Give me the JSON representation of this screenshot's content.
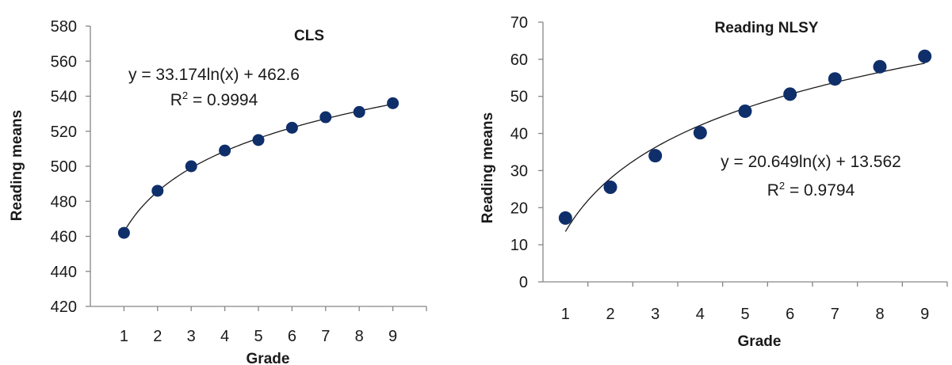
{
  "chart_data": [
    {
      "type": "scatter",
      "title": "CLS",
      "xlabel": "Grade",
      "ylabel": "Reading  means",
      "x": [
        1,
        2,
        3,
        4,
        5,
        6,
        7,
        8,
        9
      ],
      "categories": [
        "1",
        "2",
        "3",
        "4",
        "5",
        "6",
        "7",
        "8",
        "9"
      ],
      "series": [
        {
          "values": [
            462,
            486,
            500,
            509,
            515,
            522,
            528,
            531,
            536
          ]
        }
      ],
      "trendline": {
        "type": "logarithmic",
        "a": 33.174,
        "b": 462.6
      },
      "equation_label": "y = 33.174ln(x) + 462.6",
      "r2_prefix": "R",
      "r2_exp": "2",
      "r2_suffix": " = 0.9994",
      "ylim": [
        420,
        580
      ],
      "yticks": [
        420,
        440,
        460,
        480,
        500,
        520,
        540,
        560,
        580
      ],
      "grid": false,
      "legend": "none",
      "marker_color": "#0f2f6b"
    },
    {
      "type": "scatter",
      "title": "Reading NLSY",
      "xlabel": "Grade",
      "ylabel": "Reading  means",
      "x": [
        1,
        2,
        3,
        4,
        5,
        6,
        7,
        8,
        9
      ],
      "categories": [
        "1",
        "2",
        "3",
        "4",
        "5",
        "6",
        "7",
        "8",
        "9"
      ],
      "series": [
        {
          "values": [
            17.2,
            25.5,
            34,
            40.2,
            46,
            50.6,
            54.7,
            58,
            60.8
          ]
        }
      ],
      "trendline": {
        "type": "logarithmic",
        "a": 20.649,
        "b": 13.562
      },
      "equation_label": "y = 20.649ln(x) + 13.562",
      "r2_prefix": "R",
      "r2_exp": "2",
      "r2_suffix": " = 0.9794",
      "ylim": [
        0,
        70
      ],
      "yticks": [
        0,
        10,
        20,
        30,
        40,
        50,
        60,
        70
      ],
      "grid": false,
      "legend": "none",
      "marker_color": "#0f2f6b"
    }
  ]
}
